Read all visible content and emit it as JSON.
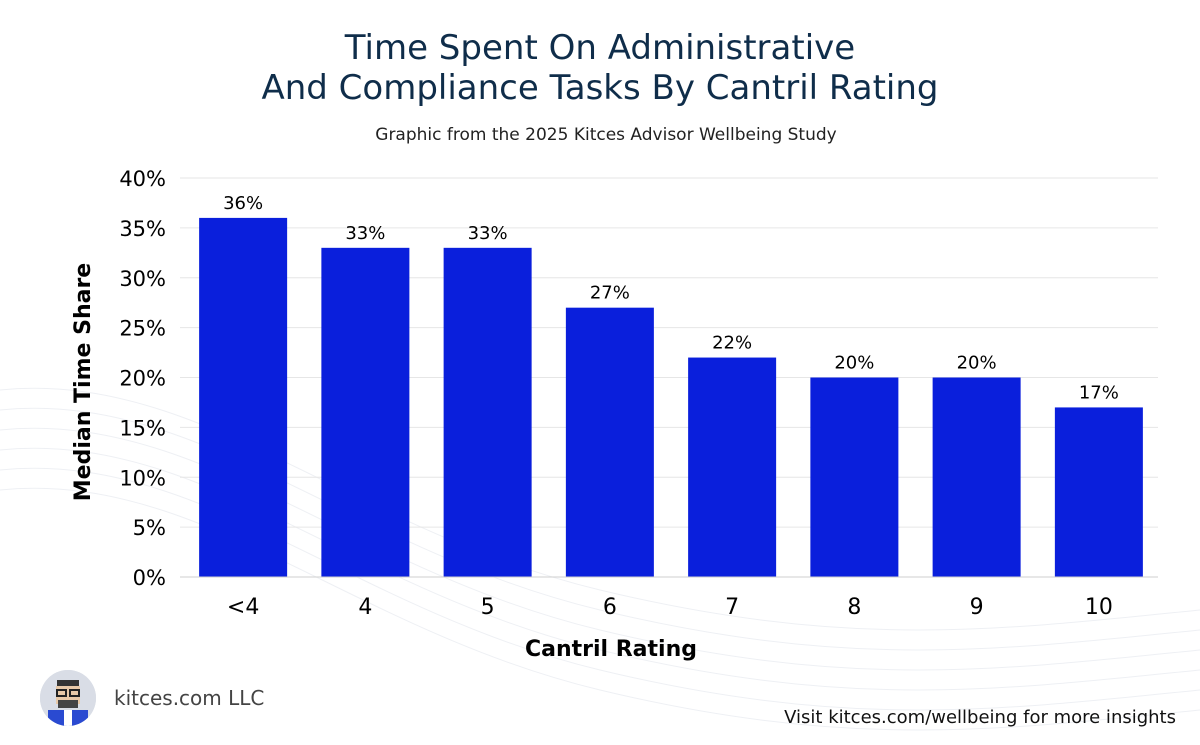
{
  "header": {
    "title_line1": "Time Spent On Administrative",
    "title_line2": "And Compliance Tasks By Cantril Rating",
    "subtitle": "Graphic from the 2025 Kitces Advisor Wellbeing Study"
  },
  "chart_data": {
    "type": "bar",
    "categories": [
      "<4",
      "4",
      "5",
      "6",
      "7",
      "8",
      "9",
      "10"
    ],
    "values": [
      36,
      33,
      33,
      27,
      22,
      20,
      20,
      17
    ],
    "value_labels": [
      "36%",
      "33%",
      "33%",
      "27%",
      "22%",
      "20%",
      "20%",
      "17%"
    ],
    "xlabel": "Cantril Rating",
    "ylabel": "Median Time Share",
    "ylim": [
      0,
      40
    ],
    "yticks": [
      0,
      5,
      10,
      15,
      20,
      25,
      30,
      35,
      40
    ],
    "ytick_labels": [
      "0%",
      "5%",
      "10%",
      "15%",
      "20%",
      "25%",
      "30%",
      "35%",
      "40%"
    ],
    "grid": true,
    "bar_color": "#0a1fdc"
  },
  "footer": {
    "brand": "kitces.com LLC",
    "link_text": "Visit kitces.com/wellbeing for more insights"
  },
  "colors": {
    "title": "#0f2d4a",
    "bar": "#0a1fdc",
    "grid": "#e6e6e6"
  }
}
